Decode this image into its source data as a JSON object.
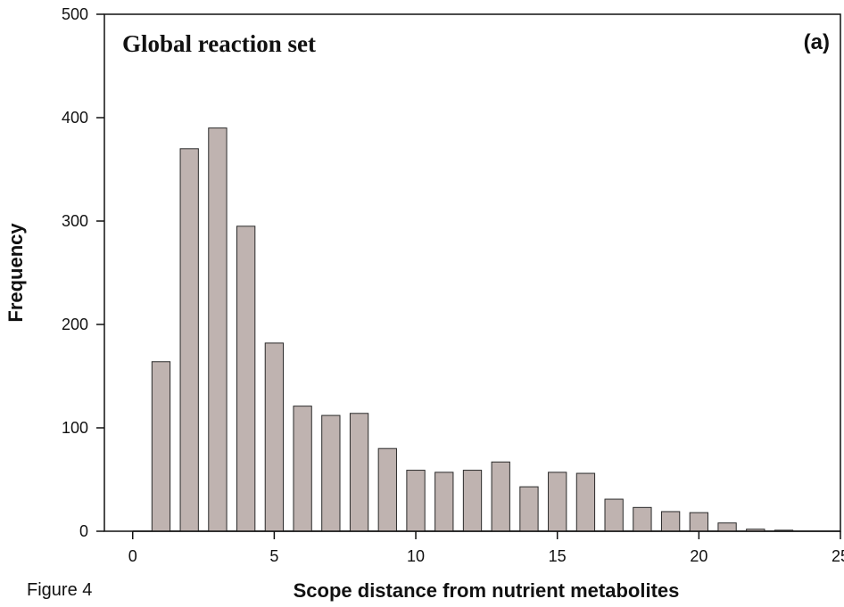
{
  "figure_label": "Figure 4",
  "colors": {
    "bar_fill": "#bfb3b0",
    "bar_stroke": "#2a2a2a",
    "axis": "#111111"
  },
  "chart_data": {
    "type": "bar",
    "title": "Global reaction set",
    "panel_label": "(a)",
    "xlabel": "Scope distance from nutrient metabolites",
    "ylabel": "Frequency",
    "xlim": [
      -1,
      25
    ],
    "ylim": [
      0,
      500
    ],
    "xticks": [
      0,
      5,
      10,
      15,
      20,
      25
    ],
    "yticks": [
      0,
      100,
      200,
      300,
      400,
      500
    ],
    "grid": false,
    "categories": [
      1,
      2,
      3,
      4,
      5,
      6,
      7,
      8,
      9,
      10,
      11,
      12,
      13,
      14,
      15,
      16,
      17,
      18,
      19,
      20,
      21,
      22,
      23
    ],
    "values": [
      164,
      370,
      390,
      295,
      182,
      121,
      112,
      114,
      80,
      59,
      57,
      59,
      67,
      43,
      57,
      56,
      31,
      23,
      19,
      18,
      8,
      2,
      1
    ]
  }
}
